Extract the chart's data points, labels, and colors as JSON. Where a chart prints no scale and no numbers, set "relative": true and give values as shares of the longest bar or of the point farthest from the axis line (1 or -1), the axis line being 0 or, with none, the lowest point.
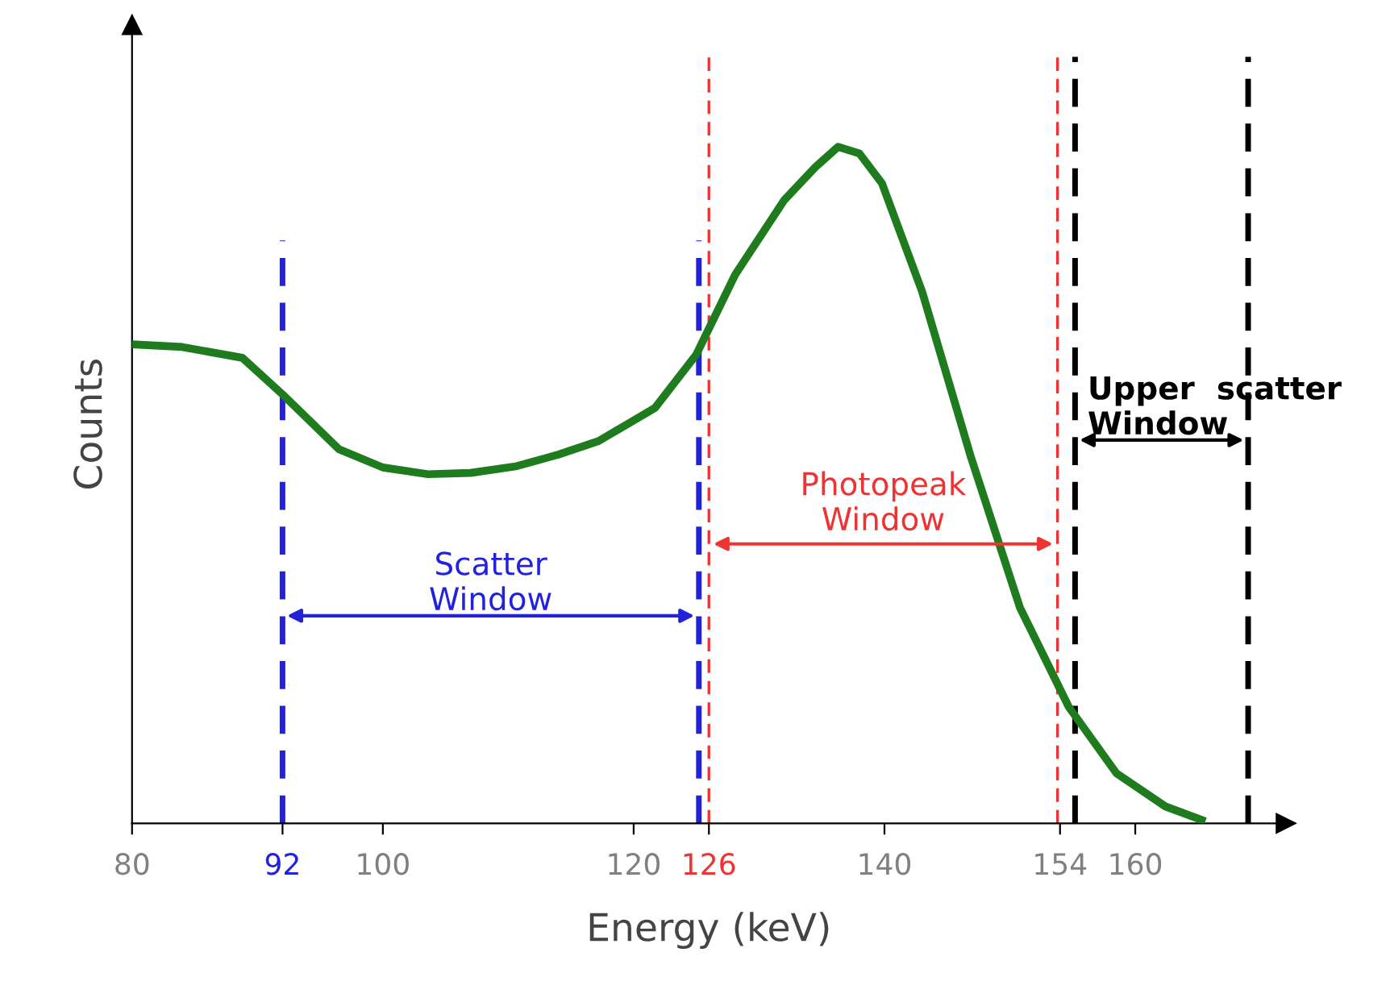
{
  "chart_data": {
    "type": "line",
    "relative": true,
    "xlabel": "Energy (keV)",
    "ylabel": "Counts",
    "xlim": [
      80,
      172
    ],
    "xticks": [
      80,
      92,
      100,
      120,
      126,
      140,
      154,
      160
    ],
    "grid": false,
    "marker": "none",
    "line_style": "solid",
    "series": [
      {
        "color": "#1e7b1e",
        "x": [
          80,
          84,
          88.8,
          92,
          96.5,
          100,
          103.6,
          107,
          110.7,
          114,
          117.2,
          121.7,
          125,
          128.1,
          132,
          134.5,
          136.3,
          138,
          139.8,
          143,
          146.9,
          150.8,
          154.7,
          158.5,
          162.4,
          165.3
        ],
        "values": [
          0.708,
          0.704,
          0.688,
          0.634,
          0.553,
          0.526,
          0.516,
          0.518,
          0.528,
          0.545,
          0.565,
          0.614,
          0.693,
          0.811,
          0.921,
          0.97,
          1.0,
          0.99,
          0.946,
          0.786,
          0.541,
          0.319,
          0.172,
          0.074,
          0.025,
          0.005
        ]
      }
    ],
    "ref_lines": [
      {
        "axis": "x",
        "value": 92,
        "color": "#2222dd",
        "line_style": "dashed"
      },
      {
        "axis": "x",
        "value": 125.2,
        "color": "#2222dd",
        "line_style": "dashed"
      },
      {
        "axis": "x",
        "value": 126,
        "color": "#ee3333",
        "line_style": "dashed"
      },
      {
        "axis": "x",
        "value": 153.8,
        "color": "#ee3333",
        "line_style": "dashed"
      },
      {
        "axis": "x",
        "value": 155.2,
        "color": "#000000",
        "line_style": "dashed"
      },
      {
        "axis": "x",
        "value": 169,
        "color": "#000000",
        "line_style": "dashed"
      }
    ],
    "annotations": [
      "Scatter\nWindow",
      "Photopeak\nWindow",
      "Upper  scatter\nWindow"
    ]
  }
}
